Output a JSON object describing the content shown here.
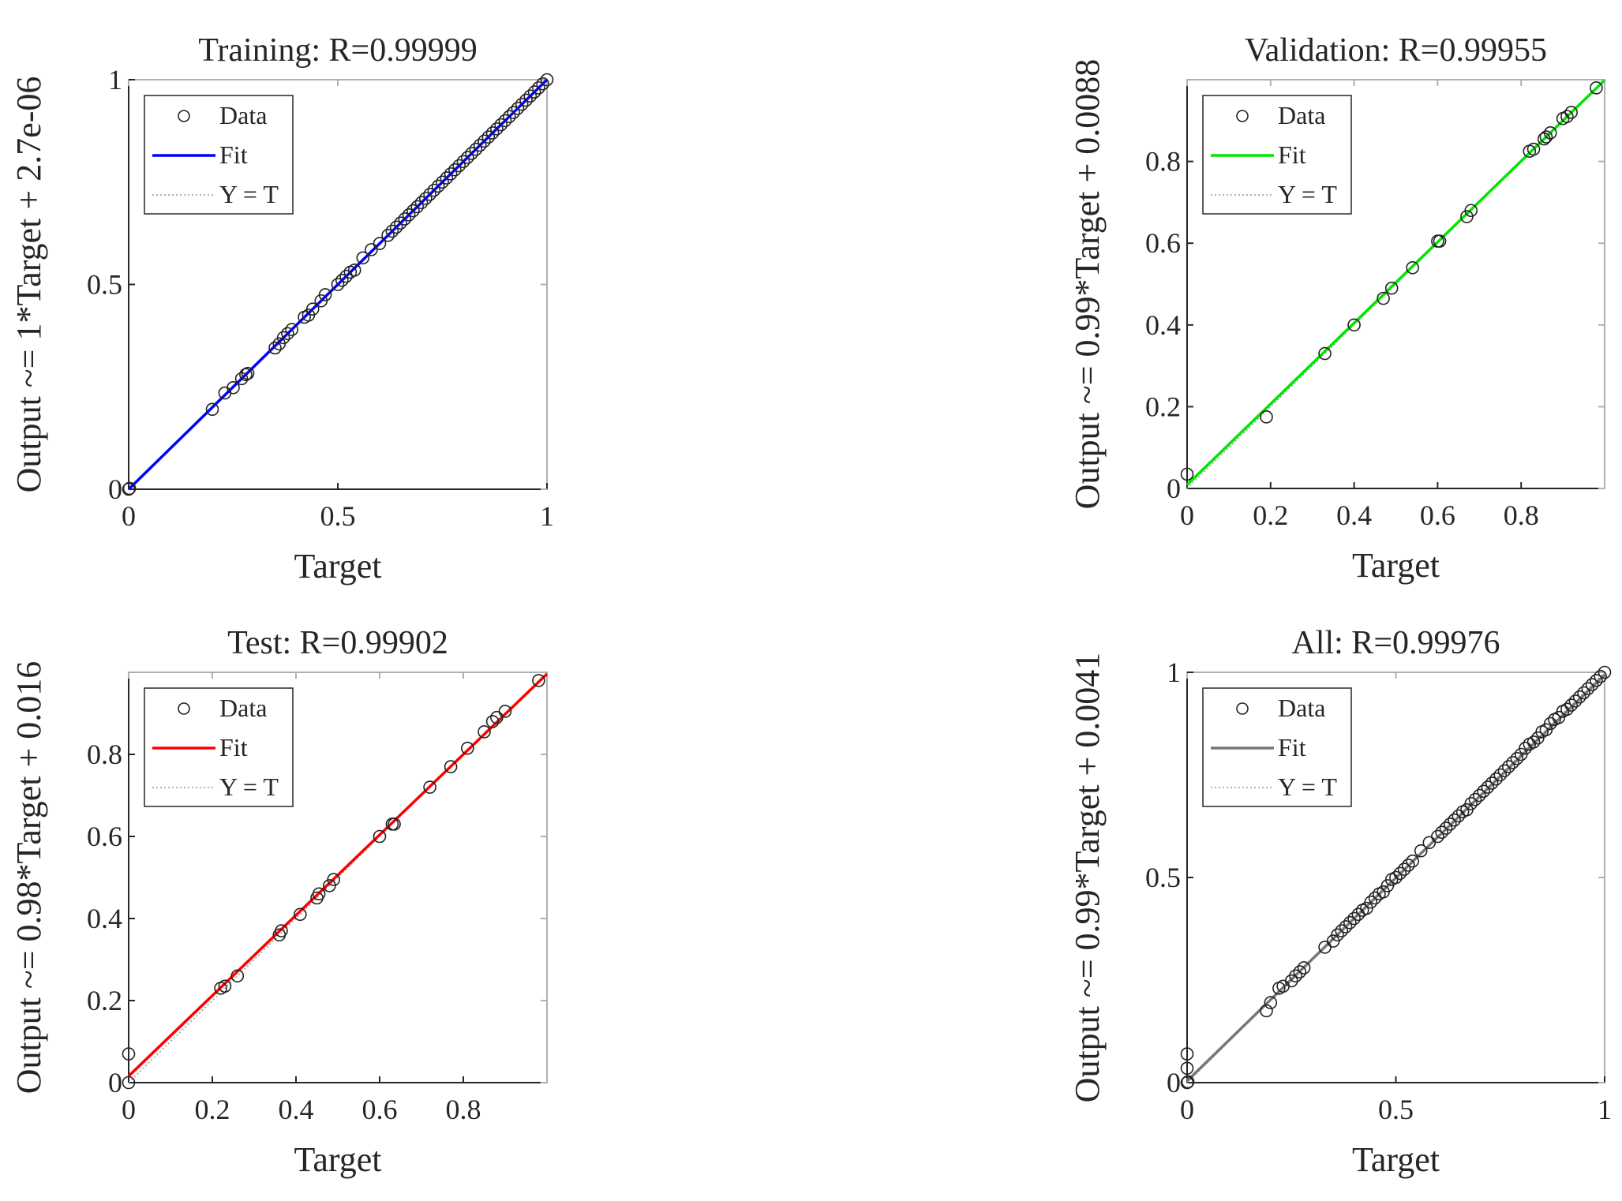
{
  "chart_data": [
    {
      "type": "scatter",
      "title": "Training: R=0.99999",
      "xlabel": "Target",
      "ylabel": "Output ~= 1*Target + 2.7e-06",
      "xlim": [
        0,
        1
      ],
      "ylim": [
        0,
        1
      ],
      "xticks": [
        0,
        0.5,
        1
      ],
      "xtick_labels": [
        "0",
        "0.5",
        "1"
      ],
      "yticks": [
        0,
        0.5,
        1
      ],
      "ytick_labels": [
        "0",
        "0.5",
        "1"
      ],
      "fit_color": "#0000ff",
      "fit": {
        "slope": 1,
        "intercept": 2.7e-06
      },
      "legend": {
        "position": "top-left",
        "entries": [
          "Data",
          "Fit",
          "Y = T"
        ]
      },
      "points": [
        [
          0,
          0
        ],
        [
          0.002,
          0.002
        ],
        [
          0.2,
          0.195
        ],
        [
          0.23,
          0.235
        ],
        [
          0.25,
          0.248
        ],
        [
          0.27,
          0.27
        ],
        [
          0.28,
          0.28
        ],
        [
          0.285,
          0.283
        ],
        [
          0.35,
          0.345
        ],
        [
          0.36,
          0.355
        ],
        [
          0.37,
          0.37
        ],
        [
          0.38,
          0.38
        ],
        [
          0.39,
          0.39
        ],
        [
          0.42,
          0.42
        ],
        [
          0.43,
          0.425
        ],
        [
          0.44,
          0.44
        ],
        [
          0.46,
          0.46
        ],
        [
          0.47,
          0.475
        ],
        [
          0.5,
          0.5
        ],
        [
          0.51,
          0.51
        ],
        [
          0.52,
          0.52
        ],
        [
          0.53,
          0.53
        ],
        [
          0.54,
          0.535
        ],
        [
          0.56,
          0.565
        ],
        [
          0.58,
          0.585
        ],
        [
          0.6,
          0.6
        ],
        [
          0.62,
          0.62
        ],
        [
          0.63,
          0.63
        ],
        [
          0.64,
          0.64
        ],
        [
          0.65,
          0.65
        ],
        [
          0.66,
          0.66
        ],
        [
          0.67,
          0.67
        ],
        [
          0.68,
          0.68
        ],
        [
          0.69,
          0.69
        ],
        [
          0.7,
          0.7
        ],
        [
          0.71,
          0.71
        ],
        [
          0.72,
          0.72
        ],
        [
          0.73,
          0.73
        ],
        [
          0.74,
          0.74
        ],
        [
          0.75,
          0.75
        ],
        [
          0.76,
          0.76
        ],
        [
          0.77,
          0.77
        ],
        [
          0.78,
          0.78
        ],
        [
          0.79,
          0.79
        ],
        [
          0.8,
          0.8
        ],
        [
          0.81,
          0.81
        ],
        [
          0.82,
          0.82
        ],
        [
          0.83,
          0.83
        ],
        [
          0.84,
          0.84
        ],
        [
          0.85,
          0.85
        ],
        [
          0.86,
          0.86
        ],
        [
          0.87,
          0.87
        ],
        [
          0.88,
          0.88
        ],
        [
          0.89,
          0.89
        ],
        [
          0.9,
          0.9
        ],
        [
          0.91,
          0.91
        ],
        [
          0.92,
          0.92
        ],
        [
          0.93,
          0.93
        ],
        [
          0.94,
          0.94
        ],
        [
          0.95,
          0.95
        ],
        [
          0.96,
          0.96
        ],
        [
          0.97,
          0.97
        ],
        [
          0.98,
          0.98
        ],
        [
          0.99,
          0.99
        ],
        [
          1,
          1
        ]
      ]
    },
    {
      "type": "scatter",
      "title": "Validation: R=0.99955",
      "xlabel": "Target",
      "ylabel": "Output ~= 0.99*Target + 0.0088",
      "xlim": [
        0,
        1
      ],
      "ylim": [
        0,
        1
      ],
      "xticks": [
        0,
        0.2,
        0.4,
        0.6,
        0.8
      ],
      "xtick_labels": [
        "0",
        "0.2",
        "0.4",
        "0.6",
        "0.8"
      ],
      "yticks": [
        0,
        0.2,
        0.4,
        0.6,
        0.8
      ],
      "ytick_labels": [
        "0",
        "0.2",
        "0.4",
        "0.6",
        "0.8"
      ],
      "fit_color": "#00e600",
      "fit": {
        "slope": 0.99,
        "intercept": 0.0088
      },
      "legend": {
        "position": "top-left",
        "entries": [
          "Data",
          "Fit",
          "Y = T"
        ]
      },
      "points": [
        [
          0,
          0.035
        ],
        [
          0.19,
          0.175
        ],
        [
          0.33,
          0.33
        ],
        [
          0.4,
          0.4
        ],
        [
          0.47,
          0.465
        ],
        [
          0.49,
          0.49
        ],
        [
          0.54,
          0.54
        ],
        [
          0.6,
          0.605
        ],
        [
          0.605,
          0.605
        ],
        [
          0.67,
          0.665
        ],
        [
          0.68,
          0.68
        ],
        [
          0.82,
          0.825
        ],
        [
          0.83,
          0.83
        ],
        [
          0.855,
          0.855
        ],
        [
          0.86,
          0.86
        ],
        [
          0.87,
          0.87
        ],
        [
          0.9,
          0.905
        ],
        [
          0.91,
          0.91
        ],
        [
          0.92,
          0.92
        ],
        [
          0.98,
          0.98
        ]
      ]
    },
    {
      "type": "scatter",
      "title": "Test: R=0.99902",
      "xlabel": "Target",
      "ylabel": "Output ~= 0.98*Target + 0.016",
      "xlim": [
        0,
        1
      ],
      "ylim": [
        0,
        1
      ],
      "xticks": [
        0,
        0.2,
        0.4,
        0.6,
        0.8
      ],
      "xtick_labels": [
        "0",
        "0.2",
        "0.4",
        "0.6",
        "0.8"
      ],
      "yticks": [
        0,
        0.2,
        0.4,
        0.6,
        0.8
      ],
      "ytick_labels": [
        "0",
        "0.2",
        "0.4",
        "0.6",
        "0.8"
      ],
      "fit_color": "#ff0000",
      "fit": {
        "slope": 0.98,
        "intercept": 0.016
      },
      "legend": {
        "position": "top-left",
        "entries": [
          "Data",
          "Fit",
          "Y = T"
        ]
      },
      "points": [
        [
          0,
          0.07
        ],
        [
          0,
          0
        ],
        [
          0.22,
          0.23
        ],
        [
          0.23,
          0.235
        ],
        [
          0.26,
          0.26
        ],
        [
          0.36,
          0.36
        ],
        [
          0.365,
          0.37
        ],
        [
          0.41,
          0.41
        ],
        [
          0.45,
          0.45
        ],
        [
          0.455,
          0.46
        ],
        [
          0.48,
          0.48
        ],
        [
          0.49,
          0.495
        ],
        [
          0.6,
          0.6
        ],
        [
          0.63,
          0.63
        ],
        [
          0.635,
          0.63
        ],
        [
          0.72,
          0.72
        ],
        [
          0.77,
          0.77
        ],
        [
          0.81,
          0.815
        ],
        [
          0.85,
          0.855
        ],
        [
          0.87,
          0.88
        ],
        [
          0.88,
          0.89
        ],
        [
          0.9,
          0.905
        ],
        [
          0.98,
          0.98
        ]
      ]
    },
    {
      "type": "scatter",
      "title": "All: R=0.99976",
      "xlabel": "Target",
      "ylabel": "Output ~= 0.99*Target + 0.0041",
      "xlim": [
        0,
        1
      ],
      "ylim": [
        0,
        1
      ],
      "xticks": [
        0,
        0.5,
        1
      ],
      "xtick_labels": [
        "0",
        "0.5",
        "1"
      ],
      "yticks": [
        0,
        0.5,
        1
      ],
      "ytick_labels": [
        "0",
        "0.5",
        "1"
      ],
      "fit_color": "#777777",
      "fit": {
        "slope": 0.99,
        "intercept": 0.0041
      },
      "legend": {
        "position": "top-left",
        "entries": [
          "Data",
          "Fit",
          "Y = T"
        ]
      },
      "points": [
        [
          0,
          0
        ],
        [
          0,
          0.035
        ],
        [
          0,
          0.07
        ],
        [
          0.002,
          0.002
        ],
        [
          0.19,
          0.175
        ],
        [
          0.2,
          0.195
        ],
        [
          0.22,
          0.23
        ],
        [
          0.23,
          0.235
        ],
        [
          0.25,
          0.248
        ],
        [
          0.26,
          0.26
        ],
        [
          0.27,
          0.27
        ],
        [
          0.28,
          0.28
        ],
        [
          0.33,
          0.33
        ],
        [
          0.35,
          0.345
        ],
        [
          0.36,
          0.36
        ],
        [
          0.37,
          0.37
        ],
        [
          0.38,
          0.38
        ],
        [
          0.39,
          0.39
        ],
        [
          0.4,
          0.4
        ],
        [
          0.41,
          0.41
        ],
        [
          0.42,
          0.42
        ],
        [
          0.43,
          0.425
        ],
        [
          0.44,
          0.44
        ],
        [
          0.45,
          0.45
        ],
        [
          0.46,
          0.46
        ],
        [
          0.47,
          0.465
        ],
        [
          0.48,
          0.48
        ],
        [
          0.49,
          0.495
        ],
        [
          0.5,
          0.5
        ],
        [
          0.51,
          0.51
        ],
        [
          0.52,
          0.52
        ],
        [
          0.53,
          0.53
        ],
        [
          0.54,
          0.54
        ],
        [
          0.56,
          0.565
        ],
        [
          0.58,
          0.585
        ],
        [
          0.6,
          0.6
        ],
        [
          0.61,
          0.61
        ],
        [
          0.62,
          0.62
        ],
        [
          0.63,
          0.63
        ],
        [
          0.64,
          0.64
        ],
        [
          0.65,
          0.65
        ],
        [
          0.66,
          0.66
        ],
        [
          0.67,
          0.665
        ],
        [
          0.68,
          0.68
        ],
        [
          0.69,
          0.69
        ],
        [
          0.7,
          0.7
        ],
        [
          0.71,
          0.71
        ],
        [
          0.72,
          0.72
        ],
        [
          0.73,
          0.73
        ],
        [
          0.74,
          0.74
        ],
        [
          0.75,
          0.75
        ],
        [
          0.76,
          0.76
        ],
        [
          0.77,
          0.77
        ],
        [
          0.78,
          0.78
        ],
        [
          0.79,
          0.79
        ],
        [
          0.8,
          0.8
        ],
        [
          0.81,
          0.815
        ],
        [
          0.82,
          0.825
        ],
        [
          0.83,
          0.83
        ],
        [
          0.84,
          0.84
        ],
        [
          0.85,
          0.855
        ],
        [
          0.86,
          0.86
        ],
        [
          0.87,
          0.875
        ],
        [
          0.88,
          0.885
        ],
        [
          0.89,
          0.89
        ],
        [
          0.9,
          0.905
        ],
        [
          0.91,
          0.91
        ],
        [
          0.92,
          0.92
        ],
        [
          0.93,
          0.93
        ],
        [
          0.94,
          0.94
        ],
        [
          0.95,
          0.95
        ],
        [
          0.96,
          0.96
        ],
        [
          0.97,
          0.97
        ],
        [
          0.98,
          0.98
        ],
        [
          0.99,
          0.99
        ],
        [
          1,
          1
        ]
      ]
    }
  ]
}
